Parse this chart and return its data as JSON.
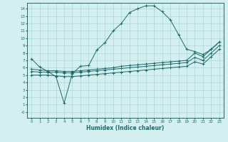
{
  "xlabel": "Humidex (Indice chaleur)",
  "bg_color": "#d4efef",
  "line_color": "#1a6b6b",
  "grid_color": "#a8d8d8",
  "x_ticks": [
    0,
    1,
    2,
    3,
    4,
    5,
    6,
    7,
    8,
    9,
    10,
    11,
    12,
    13,
    14,
    15,
    16,
    17,
    18,
    19,
    20,
    21,
    22,
    23
  ],
  "y_ticks": [
    0,
    1,
    2,
    3,
    4,
    5,
    6,
    7,
    8,
    9,
    10,
    11,
    12,
    13,
    14
  ],
  "y_tick_labels": [
    "-0",
    "1",
    "2",
    "3",
    "4",
    "5",
    "6",
    "7",
    "8",
    "9",
    "10",
    "11",
    "12",
    "13",
    "14"
  ],
  "ylim": [
    -0.8,
    14.8
  ],
  "xlim": [
    -0.5,
    23.5
  ],
  "curve1_x": [
    0,
    1,
    2,
    3,
    4,
    5,
    6,
    7,
    8,
    9,
    10,
    11,
    12,
    13,
    14,
    15,
    16,
    17,
    18,
    19,
    20,
    21,
    22,
    23
  ],
  "curve1_y": [
    7.2,
    6.1,
    5.5,
    4.8,
    1.2,
    5.2,
    6.2,
    6.3,
    8.4,
    9.4,
    11.0,
    12.0,
    13.5,
    14.0,
    14.4,
    14.4,
    13.6,
    12.5,
    10.5,
    8.5,
    8.2,
    7.8,
    8.5,
    9.5
  ],
  "curve2_x": [
    0,
    1,
    2,
    3,
    4,
    5,
    6,
    7,
    8,
    9,
    10,
    11,
    12,
    13,
    14,
    15,
    16,
    17,
    18,
    19,
    20,
    21,
    22,
    23
  ],
  "curve2_y": [
    5.8,
    5.7,
    5.6,
    5.6,
    5.5,
    5.5,
    5.6,
    5.7,
    5.8,
    5.9,
    6.0,
    6.2,
    6.3,
    6.4,
    6.5,
    6.6,
    6.7,
    6.8,
    6.9,
    7.0,
    8.0,
    7.5,
    8.5,
    9.5
  ],
  "curve3_x": [
    0,
    1,
    2,
    3,
    4,
    5,
    6,
    7,
    8,
    9,
    10,
    11,
    12,
    13,
    14,
    15,
    16,
    17,
    18,
    19,
    20,
    21,
    22,
    23
  ],
  "curve3_y": [
    5.5,
    5.4,
    5.4,
    5.4,
    5.3,
    5.3,
    5.4,
    5.5,
    5.6,
    5.7,
    5.8,
    5.9,
    6.0,
    6.1,
    6.2,
    6.3,
    6.4,
    6.5,
    6.6,
    6.7,
    7.4,
    7.0,
    8.0,
    9.0
  ],
  "curve4_x": [
    0,
    1,
    2,
    3,
    4,
    5,
    6,
    7,
    8,
    9,
    10,
    11,
    12,
    13,
    14,
    15,
    16,
    17,
    18,
    19,
    20,
    21,
    22,
    23
  ],
  "curve4_y": [
    5.0,
    5.0,
    5.0,
    4.9,
    4.8,
    4.8,
    4.9,
    5.0,
    5.1,
    5.2,
    5.3,
    5.4,
    5.5,
    5.6,
    5.7,
    5.8,
    5.9,
    6.0,
    6.1,
    6.2,
    6.8,
    6.5,
    7.5,
    8.5
  ]
}
